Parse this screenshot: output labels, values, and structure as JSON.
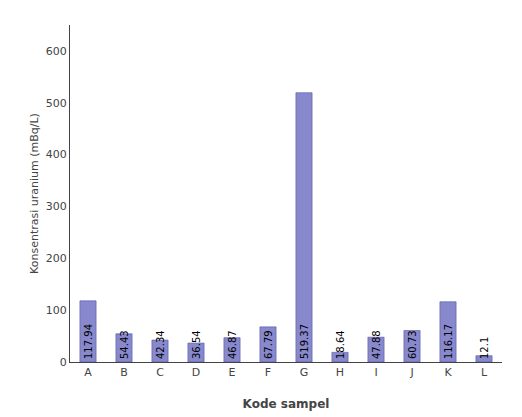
{
  "chart_data": {
    "type": "bar",
    "categories": [
      "A",
      "B",
      "C",
      "D",
      "E",
      "F",
      "G",
      "H",
      "I",
      "J",
      "K",
      "L"
    ],
    "values": [
      117.94,
      54.43,
      42.34,
      36.54,
      46.87,
      67.79,
      519.37,
      18.64,
      47.88,
      60.73,
      116.17,
      12.1
    ],
    "color": "#8888cc",
    "xlabel": "Kode sampel",
    "ylabel": "Konsentrasi uranium (mBq/L)",
    "ylim": [
      0,
      650
    ],
    "yticks": [
      0,
      100,
      200,
      300,
      400,
      500,
      600
    ],
    "grid": false,
    "data_labels": true
  }
}
